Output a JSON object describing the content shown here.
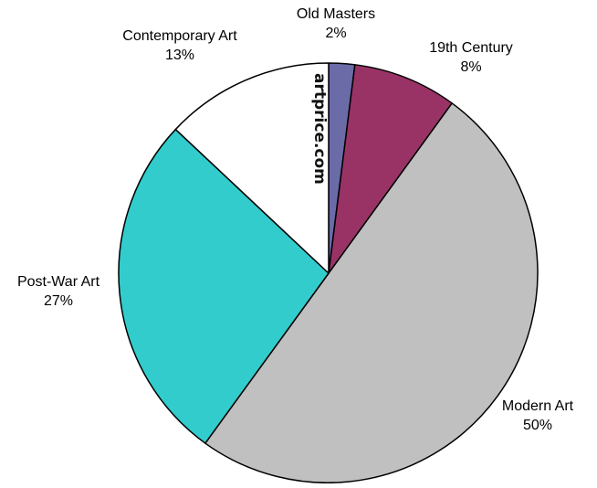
{
  "chart_data": {
    "type": "pie",
    "start": "top",
    "direction": "clockwise",
    "slices": [
      {
        "label": "Old Masters",
        "value": 2,
        "value_text": "2%",
        "color": "#6B6BA8"
      },
      {
        "label": "19th Century",
        "value": 8,
        "value_text": "8%",
        "color": "#993366"
      },
      {
        "label": "Modern Art",
        "value": 50,
        "value_text": "50%",
        "color": "#C0C0C0"
      },
      {
        "label": "Post-War Art",
        "value": 27,
        "value_text": "27%",
        "color": "#33CCCC"
      },
      {
        "label": "Contemporary Art",
        "value": 13,
        "value_text": "13%",
        "color": "#FFFFFF"
      }
    ],
    "slice_border_color": "#000000",
    "legend": "none"
  },
  "watermark": {
    "text": "artprice.com"
  }
}
